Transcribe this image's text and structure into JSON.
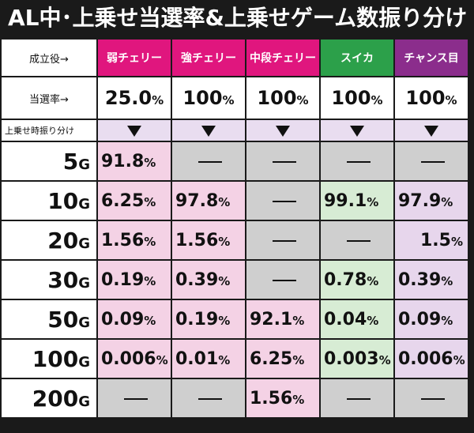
{
  "title": "AL中･上乗せ当選率&上乗せゲーム数振り分け",
  "row_labels": {
    "role": "成立役→",
    "rate": "当選率→",
    "distribution": "上乗せ時振り分け"
  },
  "columns": [
    {
      "label": "弱チェリー",
      "color": "#e0167e",
      "rate": "25.0",
      "rate_unit": "%"
    },
    {
      "label": "強チェリー",
      "color": "#e0167e",
      "rate": "100",
      "rate_unit": "%"
    },
    {
      "label": "中段チェリー",
      "color": "#e0167e",
      "rate": "100",
      "rate_unit": "%"
    },
    {
      "label": "スイカ",
      "color": "#2ca04a",
      "rate": "100",
      "rate_unit": "%"
    },
    {
      "label": "チャンス目",
      "color": "#8b2d8c",
      "rate": "100",
      "rate_unit": "%"
    }
  ],
  "colors": {
    "pink_cell": "#f4d2e5",
    "green_cell": "#d7ecd4",
    "purple_cell": "#e7d6ec",
    "none_cell": "#cfcfcf",
    "arrow_band": "#e9ddf0"
  },
  "rows": [
    {
      "g": "5",
      "unit": "G",
      "values": [
        "91.8",
        null,
        null,
        null,
        null
      ]
    },
    {
      "g": "10",
      "unit": "G",
      "values": [
        "6.25",
        "97.8",
        null,
        "99.1",
        "97.9"
      ]
    },
    {
      "g": "20",
      "unit": "G",
      "values": [
        "1.56",
        "1.56",
        null,
        null,
        "1.5"
      ]
    },
    {
      "g": "30",
      "unit": "G",
      "values": [
        "0.19",
        "0.39",
        null,
        "0.78",
        "0.39"
      ]
    },
    {
      "g": "50",
      "unit": "G",
      "values": [
        "0.09",
        "0.19",
        "92.1",
        "0.04",
        "0.09"
      ]
    },
    {
      "g": "100",
      "unit": "G",
      "values": [
        "0.006",
        "0.01",
        "6.25",
        "0.003",
        "0.006"
      ]
    },
    {
      "g": "200",
      "unit": "G",
      "values": [
        null,
        null,
        "1.56",
        null,
        null
      ]
    }
  ],
  "pct_symbol": "%"
}
